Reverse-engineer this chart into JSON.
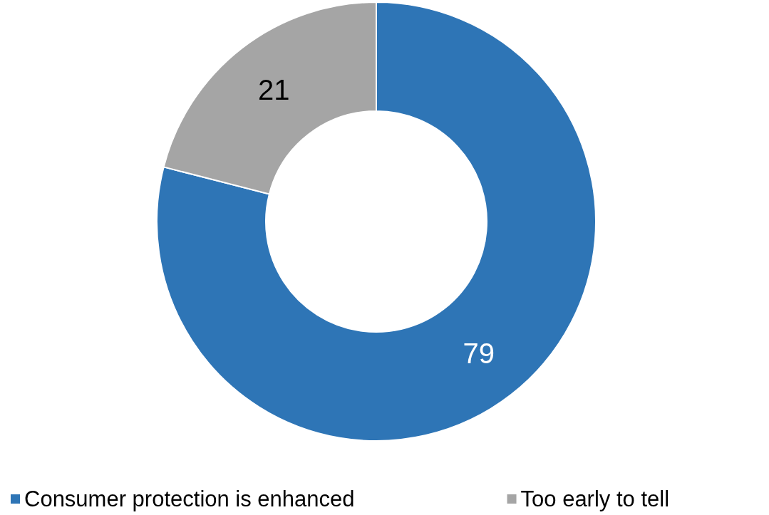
{
  "chart_data": {
    "type": "donut",
    "categories": [
      "Consumer protection is enhanced",
      "Too early to tell"
    ],
    "values": [
      79,
      21
    ],
    "colors": [
      "#2e75b6",
      "#a5a5a5"
    ],
    "data_labels": true,
    "legend": "bottom"
  }
}
